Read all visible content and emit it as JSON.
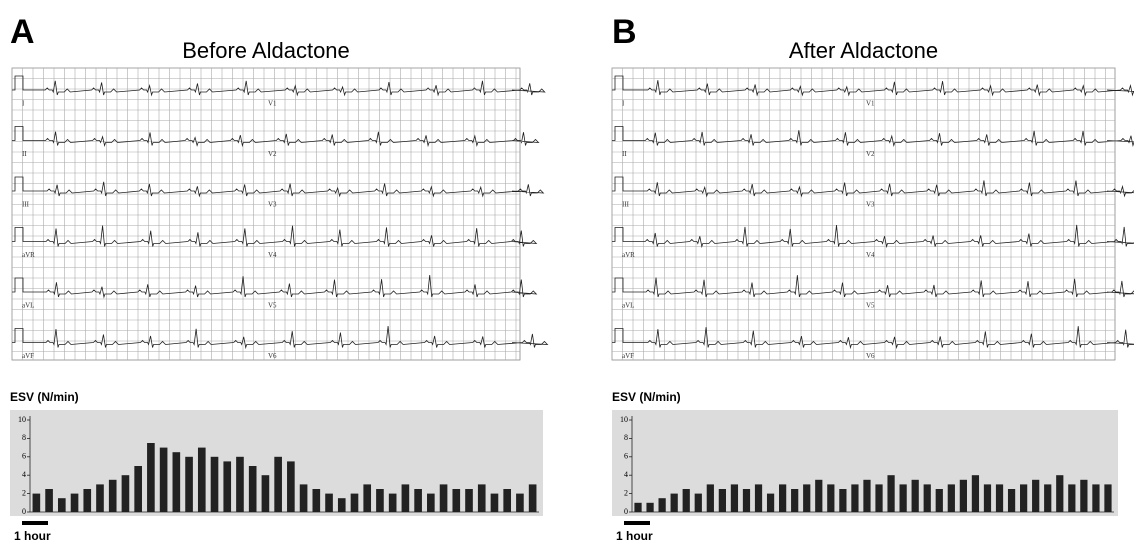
{
  "panels": [
    {
      "letter": "A",
      "title": "Before Aldactone",
      "ecg": {
        "leads": [
          "I",
          "II",
          "III",
          "aVR",
          "aVL",
          "aVF"
        ],
        "leads2": [
          "V1",
          "V2",
          "V3",
          "V4",
          "V5",
          "V6"
        ]
      },
      "esv": {
        "label": "ESV (N/min)",
        "ylim": [
          0,
          10
        ],
        "yticks": [
          0,
          2,
          4,
          6,
          8,
          10
        ],
        "values": [
          2,
          2.5,
          1.5,
          2,
          2.5,
          3,
          3.5,
          4,
          5,
          7.5,
          7,
          6.5,
          6,
          7,
          6,
          5.5,
          6,
          5,
          4,
          6,
          5.5,
          3,
          2.5,
          2,
          1.5,
          2,
          3,
          2.5,
          2,
          3,
          2.5,
          2,
          3,
          2.5,
          2.5,
          3,
          2,
          2.5,
          2,
          3
        ],
        "scale_label": "1 hour"
      }
    },
    {
      "letter": "B",
      "title": "After Aldactone",
      "ecg": {
        "leads": [
          "I",
          "II",
          "III",
          "aVR",
          "aVL",
          "aVF"
        ],
        "leads2": [
          "V1",
          "V2",
          "V3",
          "V4",
          "V5",
          "V6"
        ]
      },
      "esv": {
        "label": "ESV (N/min)",
        "ylim": [
          0,
          10
        ],
        "yticks": [
          0,
          2,
          4,
          6,
          8,
          10
        ],
        "values": [
          1,
          1,
          1.5,
          2,
          2.5,
          2,
          3,
          2.5,
          3,
          2.5,
          3,
          2,
          3,
          2.5,
          3,
          3.5,
          3,
          2.5,
          3,
          3.5,
          3,
          4,
          3,
          3.5,
          3,
          2.5,
          3,
          3.5,
          4,
          3,
          3,
          2.5,
          3,
          3.5,
          3,
          4,
          3,
          3.5,
          3,
          3
        ],
        "scale_label": "1 hour"
      }
    }
  ]
}
